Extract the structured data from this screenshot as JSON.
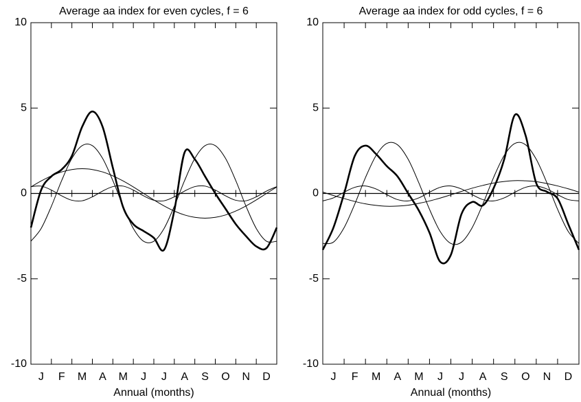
{
  "chart_data": [
    {
      "type": "line",
      "title": "Average aa index for even cycles, f = 6",
      "xlabel": "Annual (months)",
      "categories": [
        "J",
        "F",
        "M",
        "A",
        "M",
        "J",
        "J",
        "A",
        "S",
        "O",
        "N",
        "D"
      ],
      "xlim": [
        0,
        12
      ],
      "ylim": [
        -10,
        10
      ],
      "yticks": [
        -10,
        -5,
        0,
        5,
        10
      ],
      "x": [
        0,
        0.5,
        1,
        1.5,
        2,
        2.5,
        3,
        3.5,
        4,
        4.5,
        5,
        5.5,
        6,
        6.5,
        7,
        7.5,
        8,
        8.5,
        9,
        9.5,
        10,
        10.5,
        11,
        11.5,
        12
      ],
      "series": [
        {
          "color": "#000000",
          "width": 1,
          "values": [
            0.38,
            0.73,
            1.03,
            1.26,
            1.4,
            1.45,
            1.4,
            1.26,
            1.03,
            0.73,
            0.38,
            0,
            -0.38,
            -0.73,
            -1.03,
            -1.26,
            -1.4,
            -1.45,
            -1.4,
            -1.26,
            -1.03,
            -0.73,
            -0.38,
            0,
            0.38
          ]
        },
        {
          "color": "#000000",
          "width": 1,
          "values": [
            -2.8,
            -2.05,
            -0.75,
            0.75,
            2.05,
            2.8,
            2.8,
            2.05,
            0.75,
            -0.75,
            -2.05,
            -2.8,
            -2.8,
            -2.05,
            -0.75,
            0.75,
            2.05,
            2.8,
            2.8,
            2.05,
            0.75,
            -0.75,
            -2.05,
            -2.8,
            -2.8
          ]
        },
        {
          "color": "#000000",
          "width": 1,
          "values": [
            0.4,
            0.43,
            0.2,
            -0.14,
            -0.4,
            -0.43,
            -0.2,
            0.14,
            0.4,
            0.43,
            0.2,
            -0.14,
            -0.4,
            -0.43,
            -0.2,
            0.14,
            0.4,
            0.43,
            0.2,
            -0.14,
            -0.4,
            -0.43,
            -0.2,
            0.14,
            0.4
          ]
        },
        {
          "color": "#000000",
          "width": 2.6,
          "values": [
            -2.0,
            0.2,
            1.0,
            1.4,
            2.2,
            3.9,
            4.8,
            3.9,
            1.5,
            -0.8,
            -1.8,
            -2.2,
            -2.6,
            -3.3,
            -1.0,
            2.4,
            2.0,
            1.0,
            0.0,
            -0.9,
            -1.8,
            -2.5,
            -3.1,
            -3.2,
            -2.0
          ]
        }
      ]
    },
    {
      "type": "line",
      "title": "Average aa index for odd cycles, f = 6",
      "xlabel": "Annual (months)",
      "categories": [
        "J",
        "F",
        "M",
        "A",
        "M",
        "J",
        "J",
        "A",
        "S",
        "O",
        "N",
        "D"
      ],
      "xlim": [
        0,
        12
      ],
      "ylim": [
        -10,
        10
      ],
      "yticks": [
        -10,
        -5,
        0,
        5,
        10
      ],
      "x": [
        0,
        0.5,
        1,
        1.5,
        2,
        2.5,
        3,
        3.5,
        4,
        4.5,
        5,
        5.5,
        6,
        6.5,
        7,
        7.5,
        8,
        8.5,
        9,
        9.5,
        10,
        10.5,
        11,
        11.5,
        12
      ],
      "series": [
        {
          "color": "#000000",
          "width": 1,
          "values": [
            0.08,
            -0.12,
            -0.3,
            -0.47,
            -0.61,
            -0.7,
            -0.75,
            -0.74,
            -0.69,
            -0.58,
            -0.44,
            -0.27,
            -0.08,
            0.12,
            0.31,
            0.47,
            0.61,
            0.7,
            0.75,
            0.74,
            0.69,
            0.58,
            0.44,
            0.27,
            0.08
          ]
        },
        {
          "color": "#000000",
          "width": 1,
          "values": [
            -2.93,
            -2.85,
            -2.0,
            -0.62,
            0.93,
            2.23,
            2.93,
            2.85,
            2.0,
            0.62,
            -0.93,
            -2.23,
            -2.93,
            -2.85,
            -2.0,
            -0.62,
            0.93,
            2.23,
            2.93,
            2.85,
            2.0,
            0.62,
            -0.93,
            -2.23,
            -2.93
          ]
        },
        {
          "color": "#000000",
          "width": 1,
          "values": [
            -0.44,
            -0.26,
            0.07,
            0.36,
            0.44,
            0.26,
            -0.07,
            -0.36,
            -0.44,
            -0.26,
            0.07,
            0.36,
            0.44,
            0.26,
            -0.07,
            -0.36,
            -0.44,
            -0.26,
            0.07,
            0.36,
            0.44,
            0.26,
            -0.07,
            -0.36,
            -0.44
          ]
        },
        {
          "color": "#000000",
          "width": 2.6,
          "values": [
            -3.3,
            -2.0,
            0.0,
            2.2,
            2.8,
            2.3,
            1.6,
            1.0,
            0.0,
            -1.0,
            -2.3,
            -4.0,
            -3.6,
            -1.2,
            -0.5,
            -0.7,
            0.3,
            2.0,
            4.6,
            3.4,
            0.6,
            0.1,
            -0.3,
            -1.8,
            -3.3
          ]
        }
      ]
    }
  ]
}
